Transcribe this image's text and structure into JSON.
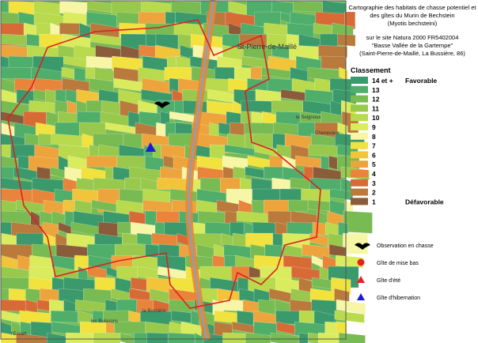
{
  "title": {
    "lines": [
      "Cartographie des habitats de chasse potentiel et",
      "des gîtes du Murin de Bechstein",
      "(Myotis bechsteini)",
      "sur le site Natura 2000 FR5402004",
      "\"Basse Vallée de la Gartempe\"",
      "(Saint-Pierre-de-Maillé, La Bussière, 86)"
    ]
  },
  "legend": {
    "heading": "Classement",
    "classes": [
      {
        "label": "14 et +",
        "color": "#3a9a6c"
      },
      {
        "label": "13",
        "color": "#4fae6a"
      },
      {
        "label": "12",
        "color": "#78bb52"
      },
      {
        "label": "11",
        "color": "#98c94c"
      },
      {
        "label": "10",
        "color": "#b8da4c"
      },
      {
        "label": "9",
        "color": "#dbeb5e"
      },
      {
        "label": "8",
        "color": "#f6f6a6"
      },
      {
        "label": "7",
        "color": "#f1e23e"
      },
      {
        "label": "6",
        "color": "#f2c43a"
      },
      {
        "label": "5",
        "color": "#eda43c"
      },
      {
        "label": "4",
        "color": "#e8853a"
      },
      {
        "label": "3",
        "color": "#d86a36"
      },
      {
        "label": "2",
        "color": "#b97a3c"
      },
      {
        "label": "1",
        "color": "#8a5c3a"
      }
    ],
    "best": "Favorable",
    "worst": "Défavorable",
    "symbols": [
      {
        "label": "Observation en chasse",
        "shape": "bat",
        "color": "#000000"
      },
      {
        "label": "Gîte de mise bas",
        "shape": "circle",
        "color": "#e82020"
      },
      {
        "label": "Gîte d'été",
        "shape": "triangle",
        "color": "#e82020"
      },
      {
        "label": "Gîte d'hibernation",
        "shape": "triangle",
        "color": "#1a1ad8"
      }
    ]
  },
  "map": {
    "places": [
      "St-Pierre-de-Maillé",
      "le Seignoux",
      "Chenevaux",
      "les Bulasons",
      "l'Essart",
      "la Bussière"
    ]
  }
}
